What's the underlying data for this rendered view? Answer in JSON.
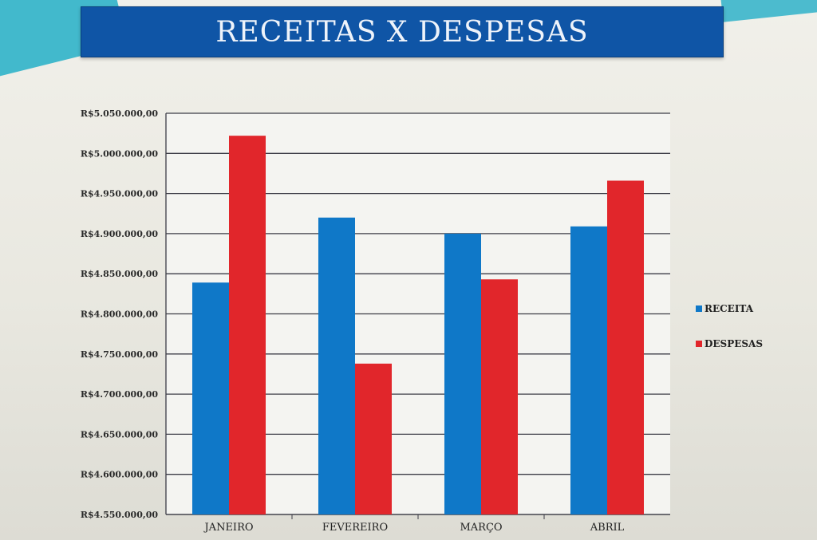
{
  "slide": {
    "title": "RECEITAS X DESPESAS",
    "accent_color": "#2fb2c9",
    "title_bar_color": "#0f55a6"
  },
  "chart_data": {
    "type": "bar",
    "categories": [
      "JANEIRO",
      "FEVEREIRO",
      "MARÇO",
      "ABRIL"
    ],
    "series": [
      {
        "name": "RECEITA",
        "color": "#0f78c8",
        "values": [
          4839000,
          4920000,
          4900000,
          4909000
        ]
      },
      {
        "name": "DESPESAS",
        "color": "#e1262b",
        "values": [
          5022000,
          4738000,
          4843000,
          4966000
        ]
      }
    ],
    "ylim": [
      4550000,
      5050000
    ],
    "y_ticks": [
      4550000,
      4600000,
      4650000,
      4700000,
      4750000,
      4800000,
      4850000,
      4900000,
      4950000,
      5000000,
      5050000
    ],
    "y_tick_labels": [
      "R$4.550.000,00",
      "R$4.600.000,00",
      "R$4.650.000,00",
      "R$4.700.000,00",
      "R$4.750.000,00",
      "R$4.800.000,00",
      "R$4.850.000,00",
      "R$4.900.000,00",
      "R$4.950.000,00",
      "R$5.000.000,00",
      "R$5.050.000,00"
    ],
    "grid": true,
    "legend_position": "right",
    "xlabel": "",
    "ylabel": ""
  }
}
